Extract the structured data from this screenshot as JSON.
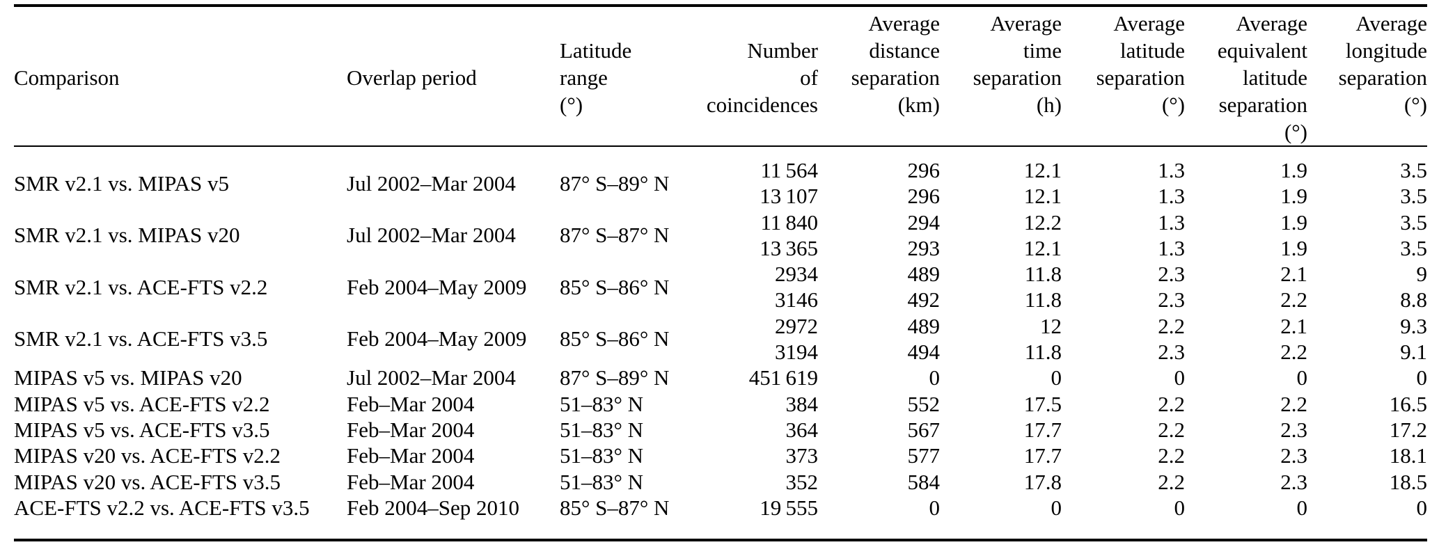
{
  "colors": {
    "text": "#000000",
    "background": "#ffffff"
  },
  "table": {
    "columns": [
      {
        "label": "Comparison"
      },
      {
        "label": "Overlap period"
      },
      {
        "label": "Latitude\nrange\n(°)"
      },
      {
        "label": "Number\nof\ncoincidences"
      },
      {
        "label": "Average\ndistance\nseparation\n(km)"
      },
      {
        "label": "Average\ntime\nseparation\n(h)"
      },
      {
        "label": "Average\nlatitude\nseparation\n(°)"
      },
      {
        "label": "Average\nequivalent\nlatitude\nseparation\n(°)"
      },
      {
        "label": "Average\nlongitude\nseparation\n(°)"
      }
    ],
    "groups": [
      {
        "comparison": "SMR v2.1 vs. MIPAS v5",
        "overlap_period": "Jul 2002–Mar 2004",
        "latitude_range": "87° S–89° N",
        "rows": [
          {
            "coincidences": "11 564",
            "distance": "296",
            "time": "12.1",
            "latitude": "1.3",
            "eq_latitude": "1.9",
            "longitude": "3.5"
          },
          {
            "coincidences": "13 107",
            "distance": "296",
            "time": "12.1",
            "latitude": "1.3",
            "eq_latitude": "1.9",
            "longitude": "3.5"
          }
        ]
      },
      {
        "comparison": "SMR v2.1 vs. MIPAS v20",
        "overlap_period": "Jul 2002–Mar 2004",
        "latitude_range": "87° S–87° N",
        "rows": [
          {
            "coincidences": "11 840",
            "distance": "294",
            "time": "12.2",
            "latitude": "1.3",
            "eq_latitude": "1.9",
            "longitude": "3.5"
          },
          {
            "coincidences": "13 365",
            "distance": "293",
            "time": "12.1",
            "latitude": "1.3",
            "eq_latitude": "1.9",
            "longitude": "3.5"
          }
        ]
      },
      {
        "comparison": "SMR v2.1 vs. ACE-FTS v2.2",
        "overlap_period": "Feb 2004–May 2009",
        "latitude_range": "85° S–86° N",
        "rows": [
          {
            "coincidences": "2934",
            "distance": "489",
            "time": "11.8",
            "latitude": "2.3",
            "eq_latitude": "2.1",
            "longitude": "9"
          },
          {
            "coincidences": "3146",
            "distance": "492",
            "time": "11.8",
            "latitude": "2.3",
            "eq_latitude": "2.2",
            "longitude": "8.8"
          }
        ]
      },
      {
        "comparison": "SMR v2.1 vs. ACE-FTS v3.5",
        "overlap_period": "Feb 2004–May 2009",
        "latitude_range": "85° S–86° N",
        "rows": [
          {
            "coincidences": "2972",
            "distance": "489",
            "time": "12",
            "latitude": "2.2",
            "eq_latitude": "2.1",
            "longitude": "9.3"
          },
          {
            "coincidences": "3194",
            "distance": "494",
            "time": "11.8",
            "latitude": "2.3",
            "eq_latitude": "2.2",
            "longitude": "9.1"
          }
        ]
      },
      {
        "comparison": "MIPAS v5 vs. MIPAS v20",
        "overlap_period": "Jul 2002–Mar 2004",
        "latitude_range": "87° S–89° N",
        "rows": [
          {
            "coincidences": "451 619",
            "distance": "0",
            "time": "0",
            "latitude": "0",
            "eq_latitude": "0",
            "longitude": "0"
          }
        ]
      },
      {
        "comparison": "MIPAS v5 vs. ACE-FTS v2.2",
        "overlap_period": "Feb–Mar 2004",
        "latitude_range": "51–83° N",
        "rows": [
          {
            "coincidences": "384",
            "distance": "552",
            "time": "17.5",
            "latitude": "2.2",
            "eq_latitude": "2.2",
            "longitude": "16.5"
          }
        ]
      },
      {
        "comparison": "MIPAS v5 vs. ACE-FTS v3.5",
        "overlap_period": "Feb–Mar 2004",
        "latitude_range": "51–83° N",
        "rows": [
          {
            "coincidences": "364",
            "distance": "567",
            "time": "17.7",
            "latitude": "2.2",
            "eq_latitude": "2.3",
            "longitude": "17.2"
          }
        ]
      },
      {
        "comparison": "MIPAS v20 vs. ACE-FTS v2.2",
        "overlap_period": "Feb–Mar 2004",
        "latitude_range": "51–83° N",
        "rows": [
          {
            "coincidences": "373",
            "distance": "577",
            "time": "17.7",
            "latitude": "2.2",
            "eq_latitude": "2.3",
            "longitude": "18.1"
          }
        ]
      },
      {
        "comparison": "MIPAS v20 vs. ACE-FTS v3.5",
        "overlap_period": "Feb–Mar 2004",
        "latitude_range": "51–83° N",
        "rows": [
          {
            "coincidences": "352",
            "distance": "584",
            "time": "17.8",
            "latitude": "2.2",
            "eq_latitude": "2.3",
            "longitude": "18.5"
          }
        ]
      },
      {
        "comparison": "ACE-FTS v2.2 vs. ACE-FTS v3.5",
        "overlap_period": "Feb 2004–Sep 2010",
        "latitude_range": "85° S–87° N",
        "rows": [
          {
            "coincidences": "19 555",
            "distance": "0",
            "time": "0",
            "latitude": "0",
            "eq_latitude": "0",
            "longitude": "0"
          }
        ]
      }
    ]
  }
}
